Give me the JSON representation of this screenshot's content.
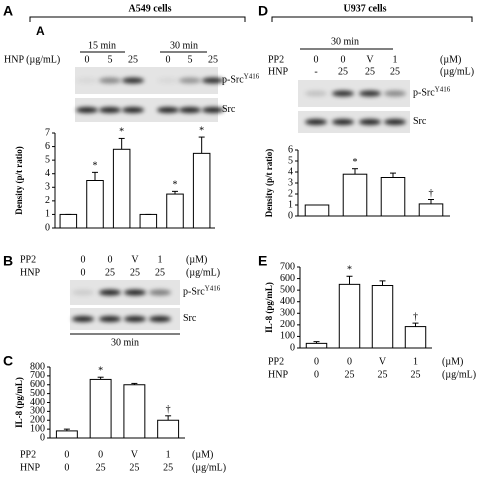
{
  "figure": {
    "A": {
      "letter": "A",
      "title": "A549 cells",
      "inner_letter": "A",
      "blot": {
        "time_groups": [
          "15 min",
          "30 min"
        ],
        "conditions": [
          {
            "name": "HNP (µg/mL)",
            "values": [
              "0",
              "5",
              "25",
              "0",
              "5",
              "25"
            ]
          }
        ],
        "bands": [
          {
            "name": "p-Src",
            "sup": "Y416"
          },
          {
            "name": "Src"
          }
        ]
      }
    },
    "B": {
      "letter": "B",
      "blot": {
        "conditions": [
          {
            "name": "PP2",
            "unit": "(µM)",
            "values": [
              "0",
              "0",
              "V",
              "1"
            ]
          },
          {
            "name": "HNP",
            "unit": "(µg/mL)",
            "values": [
              "0",
              "25",
              "25",
              "25"
            ]
          }
        ],
        "bands": [
          {
            "name": "p-Src",
            "sup": "Y416"
          },
          {
            "name": "Src"
          }
        ],
        "time": "30 min"
      }
    },
    "C": {
      "letter": "C"
    },
    "D": {
      "letter": "D",
      "title": "U937 cells",
      "blot": {
        "conditions": [
          {
            "name": "PP2",
            "unit": "(µM)",
            "values": [
              "0",
              "0",
              "V",
              "1"
            ]
          },
          {
            "name": "HNP",
            "unit": "(µg/mL)",
            "values": [
              "-",
              "25",
              "25",
              "25"
            ]
          }
        ],
        "bands": [
          {
            "name": "p-Src",
            "sup": "Y416"
          },
          {
            "name": "Src"
          }
        ],
        "time": "30 min"
      }
    },
    "E": {
      "letter": "E"
    }
  },
  "chart_data": [
    {
      "type": "bar",
      "ylabel": "Density (p/t ratio)",
      "categories": [
        null,
        null,
        null,
        null,
        null,
        null
      ],
      "values": [
        1,
        3.5,
        5.8,
        1,
        2.5,
        5.5
      ],
      "errors": [
        0,
        0.6,
        0.8,
        0,
        0.2,
        1.2
      ],
      "annotations": [
        null,
        "*",
        "*",
        null,
        "*",
        "*"
      ],
      "ylim": [
        0,
        7
      ],
      "yticks": [
        0,
        1,
        2,
        3,
        4,
        5,
        6,
        7
      ]
    },
    {
      "type": "bar",
      "ylabel": "IL-8 (pg/mL)",
      "categories": [
        null,
        null,
        null,
        null
      ],
      "values": [
        80,
        660,
        600,
        200
      ],
      "errors": [
        20,
        25,
        15,
        50
      ],
      "annotations": [
        null,
        "*",
        null,
        "†"
      ],
      "ylim": [
        0,
        800
      ],
      "yticks": [
        0,
        100,
        200,
        300,
        400,
        500,
        600,
        700,
        800
      ],
      "conditions": [
        {
          "name": "PP2",
          "unit": "(µM)",
          "values": [
            "0",
            "0",
            "V",
            "1"
          ]
        },
        {
          "name": "HNP",
          "unit": "(µg/mL)",
          "values": [
            "0",
            "25",
            "25",
            "25"
          ]
        }
      ]
    },
    {
      "type": "bar",
      "ylabel": "Density (p/t ratio)",
      "categories": [
        null,
        null,
        null,
        null
      ],
      "values": [
        1,
        3.8,
        3.5,
        1.1
      ],
      "errors": [
        0,
        0.5,
        0.4,
        0.4
      ],
      "annotations": [
        null,
        "*",
        null,
        "†"
      ],
      "ylim": [
        0,
        6
      ],
      "yticks": [
        0,
        1,
        2,
        3,
        4,
        5,
        6
      ]
    },
    {
      "type": "bar",
      "ylabel": "IL-8 (pg/mL)",
      "categories": [
        null,
        null,
        null,
        null
      ],
      "values": [
        40,
        550,
        540,
        185
      ],
      "errors": [
        15,
        70,
        40,
        30
      ],
      "annotations": [
        null,
        "*",
        null,
        "†"
      ],
      "ylim": [
        0,
        700
      ],
      "yticks": [
        0,
        100,
        200,
        300,
        400,
        500,
        600,
        700
      ],
      "conditions": [
        {
          "name": "PP2",
          "unit": "(µM)",
          "values": [
            "0",
            "0",
            "V",
            "1"
          ]
        },
        {
          "name": "HNP",
          "unit": "(µg/mL)",
          "values": [
            "0",
            "25",
            "25",
            "25"
          ]
        }
      ]
    }
  ]
}
